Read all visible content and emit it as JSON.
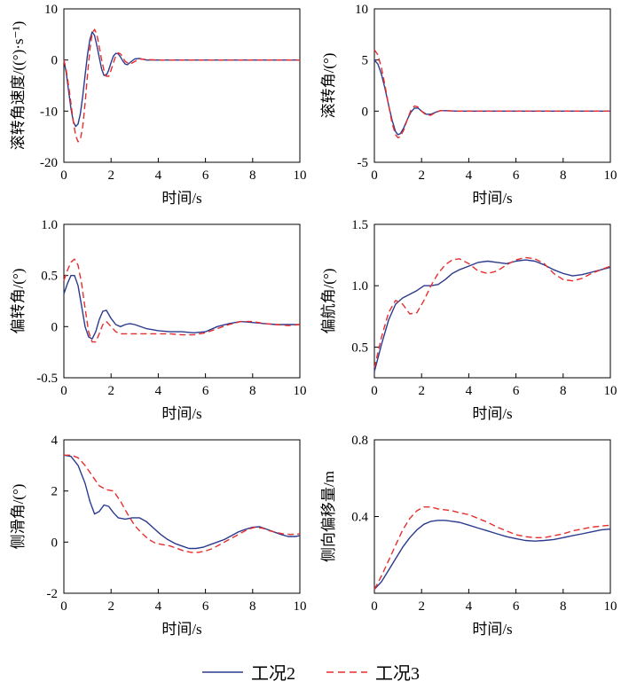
{
  "legend": {
    "entries": [
      {
        "label": "工况2",
        "color": "#2b3a8e",
        "dash": "solid"
      },
      {
        "label": "工况3",
        "color": "#e62e2e",
        "dash": "dashed"
      }
    ]
  },
  "chart_data": [
    {
      "type": "line",
      "name": "roll-rate",
      "title": "",
      "xlabel": "时间/s",
      "ylabel": "滚转角速度/((°)·s⁻¹)",
      "xlim": [
        0,
        10
      ],
      "ylim": [
        -20,
        10
      ],
      "grid": false,
      "legend_position": "bottom-shared",
      "xticks": [
        0,
        2,
        4,
        6,
        8,
        10
      ],
      "xtick_labels": [
        "0",
        "2",
        "4",
        "6",
        "8",
        "10"
      ],
      "yticks": [
        -20,
        -10,
        0,
        10
      ],
      "ytick_labels": [
        "-20",
        "-10",
        "0",
        "10"
      ],
      "series": [
        {
          "name": "工况2",
          "x": [
            0,
            0.1,
            0.2,
            0.3,
            0.4,
            0.5,
            0.6,
            0.7,
            0.8,
            0.9,
            1.0,
            1.1,
            1.2,
            1.3,
            1.4,
            1.5,
            1.6,
            1.7,
            1.8,
            1.9,
            2.0,
            2.1,
            2.2,
            2.3,
            2.4,
            2.5,
            2.6,
            2.7,
            2.8,
            3.0,
            3.2,
            3.5,
            4,
            5,
            6,
            7,
            8,
            9,
            10
          ],
          "y": [
            0,
            -2.5,
            -6,
            -9.5,
            -12,
            -13,
            -12.5,
            -10.5,
            -7,
            -3,
            1,
            4,
            5.5,
            4.8,
            2.8,
            0.5,
            -1.8,
            -3,
            -3,
            -2,
            -0.5,
            0.8,
            1.3,
            1.2,
            0.6,
            -0.2,
            -0.8,
            -0.9,
            -0.5,
            0.2,
            0.3,
            0,
            0,
            0,
            0,
            0,
            0,
            0,
            0
          ]
        },
        {
          "name": "工况3",
          "x": [
            0,
            0.1,
            0.2,
            0.3,
            0.4,
            0.5,
            0.6,
            0.7,
            0.8,
            0.9,
            1.0,
            1.1,
            1.2,
            1.3,
            1.4,
            1.5,
            1.6,
            1.7,
            1.8,
            1.9,
            2.0,
            2.1,
            2.2,
            2.3,
            2.4,
            2.5,
            2.6,
            2.8,
            3.0,
            3.2,
            3.5,
            4,
            5,
            6,
            7,
            8,
            9,
            10
          ],
          "y": [
            0,
            -2,
            -5,
            -8.5,
            -12,
            -14.8,
            -16,
            -15.5,
            -13,
            -8.5,
            -3,
            2,
            5.2,
            6,
            5,
            2.5,
            0,
            -2,
            -3.2,
            -3.2,
            -2,
            -0.5,
            0.8,
            1.4,
            1.2,
            0.5,
            -0.3,
            -0.8,
            -0.3,
            0.2,
            0.1,
            0,
            0,
            0,
            0,
            0,
            0,
            0
          ]
        }
      ]
    },
    {
      "type": "line",
      "name": "roll-angle",
      "title": "",
      "xlabel": "时间/s",
      "ylabel": "滚转角/(°)",
      "xlim": [
        0,
        10
      ],
      "ylim": [
        -5,
        10
      ],
      "grid": false,
      "legend_position": "bottom-shared",
      "xticks": [
        0,
        2,
        4,
        6,
        8,
        10
      ],
      "xtick_labels": [
        "0",
        "2",
        "4",
        "6",
        "8",
        "10"
      ],
      "yticks": [
        -5,
        0,
        5,
        10
      ],
      "ytick_labels": [
        "-5",
        "0",
        "5",
        "10"
      ],
      "series": [
        {
          "name": "工况2",
          "x": [
            0,
            0.15,
            0.3,
            0.45,
            0.6,
            0.75,
            0.9,
            1.0,
            1.1,
            1.25,
            1.4,
            1.55,
            1.7,
            1.85,
            2.0,
            2.2,
            2.4,
            2.6,
            2.8,
            3.0,
            3.5,
            4,
            5,
            6,
            7,
            8,
            9,
            10
          ],
          "y": [
            5,
            4.6,
            3.6,
            2.2,
            0.6,
            -0.9,
            -2.0,
            -2.3,
            -2.2,
            -1.6,
            -0.8,
            -0.1,
            0.3,
            0.3,
            0,
            -0.3,
            -0.3,
            -0.1,
            0.05,
            0.05,
            0,
            0,
            0,
            0,
            0,
            0,
            0,
            0
          ]
        },
        {
          "name": "工况3",
          "x": [
            0,
            0.15,
            0.3,
            0.45,
            0.6,
            0.75,
            0.9,
            1.0,
            1.1,
            1.25,
            1.4,
            1.55,
            1.7,
            1.85,
            2.0,
            2.2,
            2.4,
            2.6,
            2.8,
            3.0,
            3.5,
            4,
            5,
            6,
            7,
            8,
            9,
            10
          ],
          "y": [
            6,
            5.5,
            4.2,
            2.5,
            0.6,
            -1.2,
            -2.3,
            -2.6,
            -2.5,
            -1.8,
            -0.8,
            0.1,
            0.5,
            0.4,
            0,
            -0.4,
            -0.4,
            -0.1,
            0.05,
            0.05,
            0,
            0,
            0,
            0,
            0,
            0,
            0,
            0
          ]
        }
      ]
    },
    {
      "type": "line",
      "name": "deflection-angle",
      "title": "",
      "xlabel": "时间/s",
      "ylabel": "偏转角/(°)",
      "xlim": [
        0,
        10
      ],
      "ylim": [
        -0.5,
        1.0
      ],
      "grid": false,
      "legend_position": "bottom-shared",
      "xticks": [
        0,
        2,
        4,
        6,
        8,
        10
      ],
      "xtick_labels": [
        "0",
        "2",
        "4",
        "6",
        "8",
        "10"
      ],
      "yticks": [
        -0.5,
        0,
        0.5,
        1.0
      ],
      "ytick_labels": [
        "-0.5",
        "0",
        "0.5",
        "1.0"
      ],
      "series": [
        {
          "name": "工况2",
          "x": [
            0,
            0.15,
            0.3,
            0.45,
            0.6,
            0.75,
            0.9,
            1.05,
            1.2,
            1.35,
            1.5,
            1.65,
            1.8,
            2.0,
            2.2,
            2.4,
            2.6,
            2.8,
            3.0,
            3.5,
            4,
            4.5,
            5,
            5.5,
            6,
            6.5,
            7,
            7.5,
            8,
            8.5,
            9,
            9.5,
            10
          ],
          "y": [
            0.32,
            0.42,
            0.5,
            0.5,
            0.4,
            0.2,
            0,
            -0.1,
            -0.12,
            -0.05,
            0.07,
            0.15,
            0.16,
            0.08,
            0.02,
            0,
            0.02,
            0.03,
            0.02,
            -0.02,
            -0.04,
            -0.05,
            -0.05,
            -0.06,
            -0.05,
            0,
            0.03,
            0.05,
            0.04,
            0.03,
            0.02,
            0.02,
            0.02
          ]
        },
        {
          "name": "工况3",
          "x": [
            0,
            0.15,
            0.3,
            0.45,
            0.6,
            0.75,
            0.9,
            1.05,
            1.2,
            1.35,
            1.5,
            1.65,
            1.8,
            2.0,
            2.2,
            2.4,
            2.6,
            2.8,
            3.0,
            3.5,
            4,
            4.5,
            5,
            5.5,
            6,
            6.5,
            7,
            7.5,
            8,
            8.5,
            9,
            9.5,
            10
          ],
          "y": [
            0.45,
            0.55,
            0.63,
            0.66,
            0.6,
            0.42,
            0.18,
            -0.05,
            -0.15,
            -0.15,
            -0.07,
            0.02,
            0.05,
            0,
            -0.05,
            -0.07,
            -0.07,
            -0.07,
            -0.07,
            -0.07,
            -0.07,
            -0.07,
            -0.08,
            -0.08,
            -0.06,
            -0.02,
            0.02,
            0.05,
            0.05,
            0.03,
            0.02,
            0.01,
            0.02
          ]
        }
      ]
    },
    {
      "type": "line",
      "name": "yaw-angle",
      "title": "",
      "xlabel": "时间/s",
      "ylabel": "偏航角/(°)",
      "xlim": [
        0,
        10
      ],
      "ylim": [
        0.25,
        1.5
      ],
      "grid": false,
      "legend_position": "bottom-shared",
      "xticks": [
        0,
        2,
        4,
        6,
        8,
        10
      ],
      "xtick_labels": [
        "0",
        "2",
        "4",
        "6",
        "8",
        "10"
      ],
      "yticks": [
        0.5,
        1.0,
        1.5
      ],
      "ytick_labels": [
        "0.5",
        "1.0",
        "1.5"
      ],
      "series": [
        {
          "name": "工况2",
          "x": [
            0,
            0.3,
            0.6,
            0.9,
            1.2,
            1.5,
            1.8,
            2.1,
            2.4,
            2.7,
            3.0,
            3.3,
            3.6,
            4.0,
            4.4,
            4.8,
            5.2,
            5.6,
            6.0,
            6.4,
            6.8,
            7.2,
            7.6,
            8.0,
            8.4,
            8.8,
            9.2,
            9.6,
            10
          ],
          "y": [
            0.3,
            0.52,
            0.72,
            0.85,
            0.9,
            0.93,
            0.96,
            1.0,
            1.0,
            1.01,
            1.05,
            1.1,
            1.13,
            1.16,
            1.19,
            1.2,
            1.19,
            1.18,
            1.2,
            1.21,
            1.2,
            1.17,
            1.13,
            1.1,
            1.08,
            1.09,
            1.11,
            1.13,
            1.15
          ]
        },
        {
          "name": "工况3",
          "x": [
            0,
            0.3,
            0.6,
            0.9,
            1.2,
            1.5,
            1.8,
            2.1,
            2.4,
            2.7,
            3.0,
            3.3,
            3.6,
            4.0,
            4.4,
            4.8,
            5.2,
            5.6,
            6.0,
            6.4,
            6.8,
            7.2,
            7.6,
            8.0,
            8.4,
            8.8,
            9.2,
            9.6,
            10
          ],
          "y": [
            0.33,
            0.58,
            0.78,
            0.88,
            0.85,
            0.77,
            0.78,
            0.88,
            1.0,
            1.1,
            1.17,
            1.21,
            1.22,
            1.18,
            1.12,
            1.1,
            1.12,
            1.17,
            1.21,
            1.23,
            1.22,
            1.18,
            1.1,
            1.05,
            1.04,
            1.06,
            1.1,
            1.13,
            1.16
          ]
        }
      ]
    },
    {
      "type": "line",
      "name": "sideslip-angle",
      "title": "",
      "xlabel": "时间/s",
      "ylabel": "侧滑角/(°)",
      "xlim": [
        0,
        10
      ],
      "ylim": [
        -2,
        4
      ],
      "grid": false,
      "legend_position": "bottom-shared",
      "xticks": [
        0,
        2,
        4,
        6,
        8,
        10
      ],
      "xtick_labels": [
        "0",
        "2",
        "4",
        "6",
        "8",
        "10"
      ],
      "yticks": [
        -2,
        0,
        2,
        4
      ],
      "ytick_labels": [
        "-2",
        "0",
        "2",
        "4"
      ],
      "series": [
        {
          "name": "工况2",
          "x": [
            0,
            0.3,
            0.6,
            0.9,
            1.1,
            1.3,
            1.5,
            1.7,
            1.9,
            2.1,
            2.3,
            2.6,
            2.9,
            3.2,
            3.5,
            3.8,
            4.1,
            4.4,
            4.7,
            5.0,
            5.3,
            5.6,
            5.9,
            6.2,
            6.5,
            6.8,
            7.1,
            7.4,
            7.7,
            8.0,
            8.3,
            8.6,
            8.9,
            9.2,
            9.5,
            9.8,
            10
          ],
          "y": [
            3.4,
            3.35,
            3.0,
            2.3,
            1.6,
            1.1,
            1.2,
            1.45,
            1.4,
            1.15,
            0.95,
            0.9,
            0.95,
            0.95,
            0.8,
            0.55,
            0.3,
            0.1,
            -0.05,
            -0.15,
            -0.25,
            -0.25,
            -0.2,
            -0.1,
            0,
            0.1,
            0.25,
            0.4,
            0.5,
            0.58,
            0.6,
            0.5,
            0.4,
            0.3,
            0.22,
            0.22,
            0.25
          ]
        },
        {
          "name": "工况3",
          "x": [
            0,
            0.3,
            0.6,
            0.9,
            1.2,
            1.5,
            1.8,
            2.1,
            2.4,
            2.7,
            3.0,
            3.3,
            3.6,
            3.9,
            4.2,
            4.5,
            4.8,
            5.1,
            5.4,
            5.7,
            6.0,
            6.3,
            6.6,
            6.9,
            7.2,
            7.5,
            7.8,
            8.1,
            8.4,
            8.7,
            9.0,
            9.3,
            9.6,
            10
          ],
          "y": [
            3.4,
            3.4,
            3.3,
            3.0,
            2.6,
            2.2,
            2.05,
            2.0,
            1.6,
            1.1,
            0.65,
            0.35,
            0.1,
            -0.05,
            -0.1,
            -0.15,
            -0.25,
            -0.35,
            -0.4,
            -0.4,
            -0.35,
            -0.25,
            -0.1,
            0.05,
            0.2,
            0.35,
            0.5,
            0.58,
            0.55,
            0.45,
            0.38,
            0.32,
            0.3,
            0.32
          ]
        }
      ]
    },
    {
      "type": "line",
      "name": "lateral-offset",
      "title": "",
      "xlabel": "时间/s",
      "ylabel": "侧向偏移量/m",
      "xlim": [
        0,
        10
      ],
      "ylim": [
        0,
        0.8
      ],
      "grid": false,
      "legend_position": "bottom-shared",
      "xticks": [
        0,
        2,
        4,
        6,
        8,
        10
      ],
      "xtick_labels": [
        "0",
        "2",
        "4",
        "6",
        "8",
        "10"
      ],
      "yticks": [
        0.4,
        0.8
      ],
      "ytick_labels": [
        "0.4",
        "0.8"
      ],
      "series": [
        {
          "name": "工况2",
          "x": [
            0,
            0.3,
            0.6,
            0.9,
            1.2,
            1.5,
            1.8,
            2.1,
            2.4,
            2.7,
            3.0,
            3.3,
            3.6,
            4.0,
            4.4,
            4.8,
            5.2,
            5.6,
            6.0,
            6.4,
            6.8,
            7.2,
            7.6,
            8.0,
            8.4,
            8.8,
            9.2,
            9.6,
            10
          ],
          "y": [
            0.02,
            0.06,
            0.12,
            0.18,
            0.24,
            0.29,
            0.33,
            0.36,
            0.375,
            0.38,
            0.38,
            0.375,
            0.37,
            0.355,
            0.34,
            0.325,
            0.31,
            0.295,
            0.285,
            0.275,
            0.272,
            0.275,
            0.28,
            0.29,
            0.3,
            0.31,
            0.32,
            0.33,
            0.335
          ]
        },
        {
          "name": "工况3",
          "x": [
            0,
            0.3,
            0.6,
            0.9,
            1.2,
            1.5,
            1.8,
            2.1,
            2.4,
            2.7,
            3.0,
            3.3,
            3.6,
            4.0,
            4.4,
            4.8,
            5.2,
            5.6,
            6.0,
            6.4,
            6.8,
            7.2,
            7.6,
            8.0,
            8.4,
            8.8,
            9.2,
            9.6,
            10
          ],
          "y": [
            0.02,
            0.09,
            0.17,
            0.25,
            0.33,
            0.39,
            0.43,
            0.45,
            0.45,
            0.44,
            0.435,
            0.43,
            0.42,
            0.41,
            0.39,
            0.37,
            0.345,
            0.325,
            0.305,
            0.295,
            0.29,
            0.29,
            0.3,
            0.31,
            0.325,
            0.335,
            0.345,
            0.35,
            0.355
          ]
        }
      ]
    }
  ]
}
